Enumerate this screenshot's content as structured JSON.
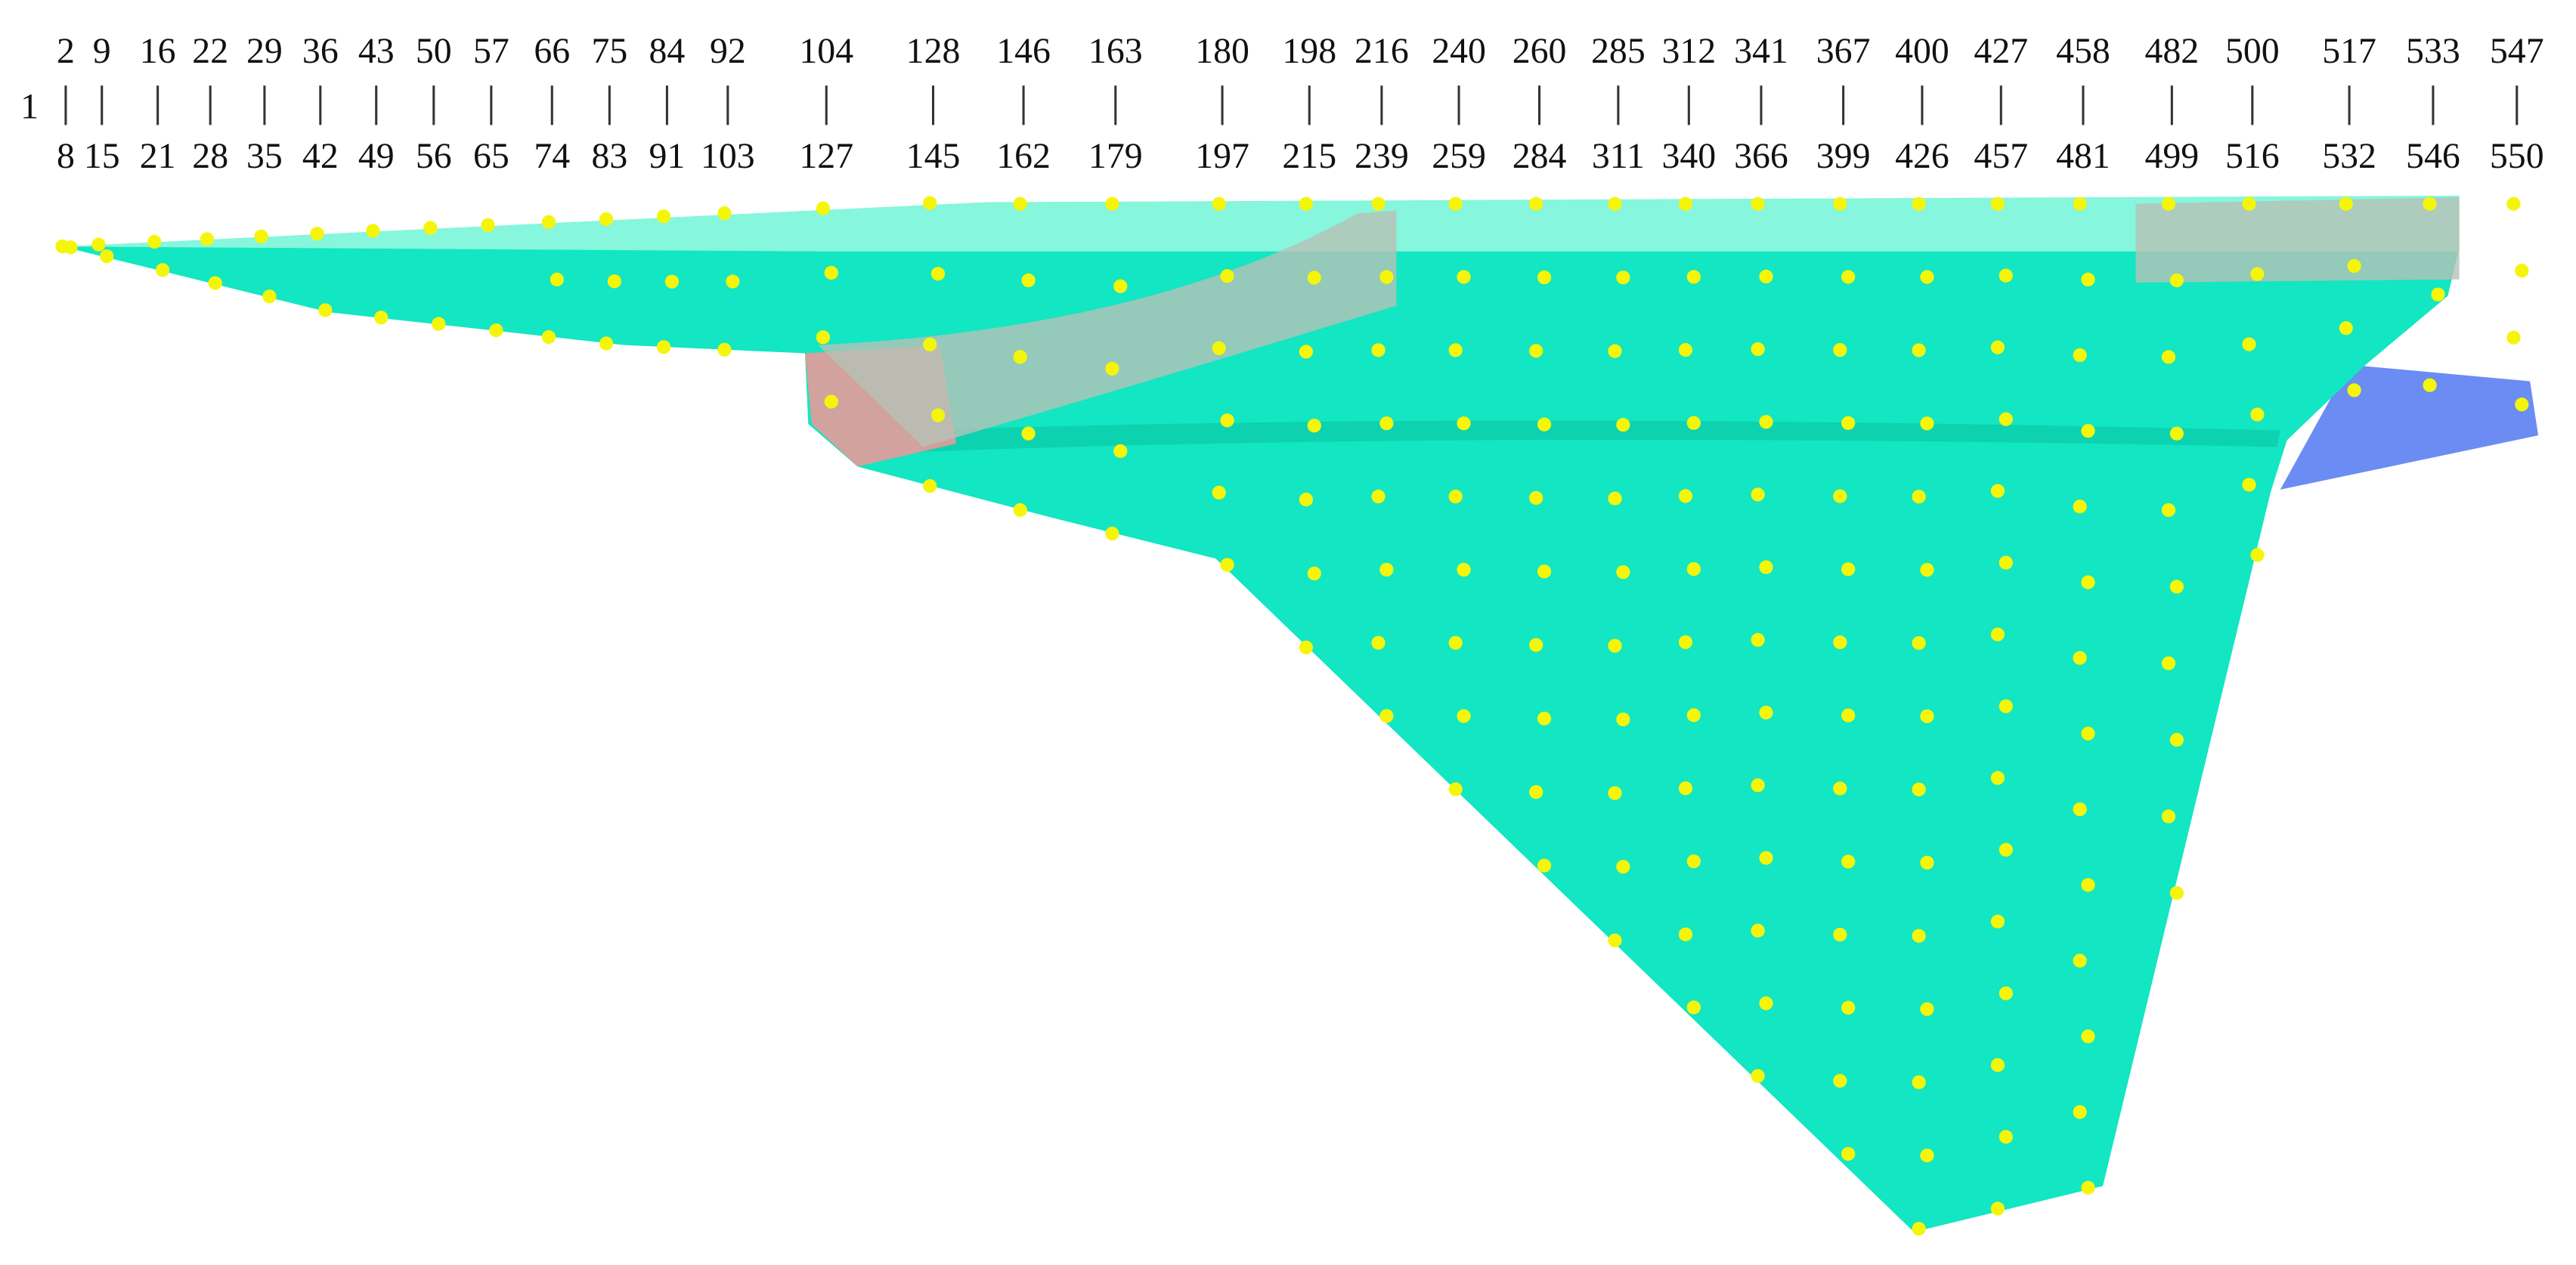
{
  "first_label": "1",
  "stations": [
    {
      "top": "2",
      "bottom": "8"
    },
    {
      "top": "9",
      "bottom": "15"
    },
    {
      "top": "16",
      "bottom": "21"
    },
    {
      "top": "22",
      "bottom": "28"
    },
    {
      "top": "29",
      "bottom": "35"
    },
    {
      "top": "36",
      "bottom": "42"
    },
    {
      "top": "43",
      "bottom": "49"
    },
    {
      "top": "50",
      "bottom": "56"
    },
    {
      "top": "57",
      "bottom": "65"
    },
    {
      "top": "66",
      "bottom": "74"
    },
    {
      "top": "75",
      "bottom": "83"
    },
    {
      "top": "84",
      "bottom": "91"
    },
    {
      "top": "92",
      "bottom": "103"
    },
    {
      "top": "104",
      "bottom": "127"
    },
    {
      "top": "128",
      "bottom": "145"
    },
    {
      "top": "146",
      "bottom": "162"
    },
    {
      "top": "163",
      "bottom": "179"
    },
    {
      "top": "180",
      "bottom": "197"
    },
    {
      "top": "198",
      "bottom": "215"
    },
    {
      "top": "216",
      "bottom": "239"
    },
    {
      "top": "240",
      "bottom": "259"
    },
    {
      "top": "260",
      "bottom": "284"
    },
    {
      "top": "285",
      "bottom": "311"
    },
    {
      "top": "312",
      "bottom": "340"
    },
    {
      "top": "341",
      "bottom": "366"
    },
    {
      "top": "367",
      "bottom": "399"
    },
    {
      "top": "400",
      "bottom": "426"
    },
    {
      "top": "427",
      "bottom": "457"
    },
    {
      "top": "458",
      "bottom": "481"
    },
    {
      "top": "482",
      "bottom": "499"
    },
    {
      "top": "500",
      "bottom": "516"
    },
    {
      "top": "517",
      "bottom": "532"
    },
    {
      "top": "533",
      "bottom": "546"
    },
    {
      "top": "547",
      "bottom": "550"
    }
  ]
}
